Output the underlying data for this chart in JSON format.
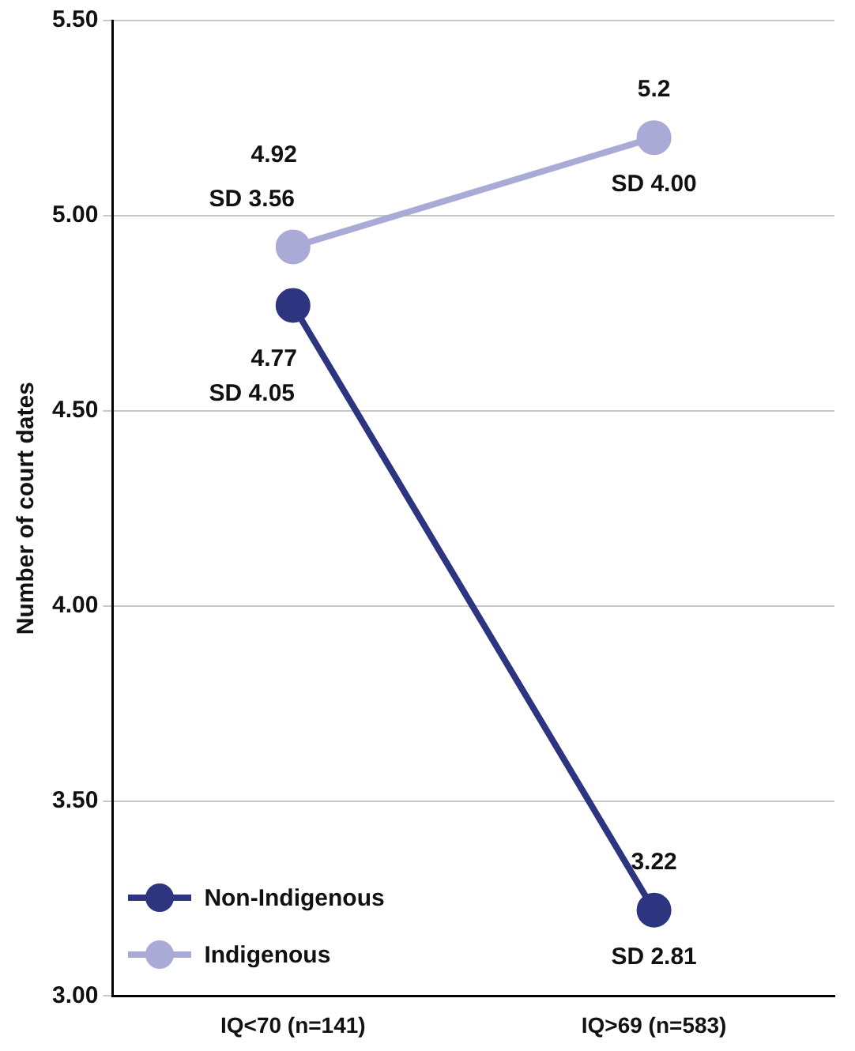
{
  "chart_data": {
    "type": "line",
    "ylabel": "Number of court dates",
    "categories": [
      "IQ<70 (n=141)",
      "IQ>69 (n=583)"
    ],
    "series": [
      {
        "name": "Non-Indigenous",
        "color": "#2e3580",
        "values": [
          4.77,
          3.22
        ],
        "value_labels": [
          "4.77",
          "3.22"
        ]
      },
      {
        "name": "Indigenous",
        "color": "#a9aad6",
        "values": [
          4.92,
          5.2
        ],
        "value_labels": [
          "4.92",
          "5.2"
        ]
      }
    ],
    "annotations": [
      "SD 4.05",
      "SD 2.81",
      "SD 3.56",
      "SD 4.00"
    ],
    "ylim": [
      3,
      5.5
    ],
    "yticks": [
      {
        "value": 3,
        "label": "3.00"
      },
      {
        "value": 3.5,
        "label": "3.50"
      },
      {
        "value": 4,
        "label": "4.00"
      },
      {
        "value": 4.5,
        "label": "4.50"
      },
      {
        "value": 5,
        "label": "5.00"
      },
      {
        "value": 5.5,
        "label": "5.50"
      }
    ],
    "grid": "y",
    "legend": "bottom left",
    "marker": "circle",
    "line_style": "solid"
  }
}
